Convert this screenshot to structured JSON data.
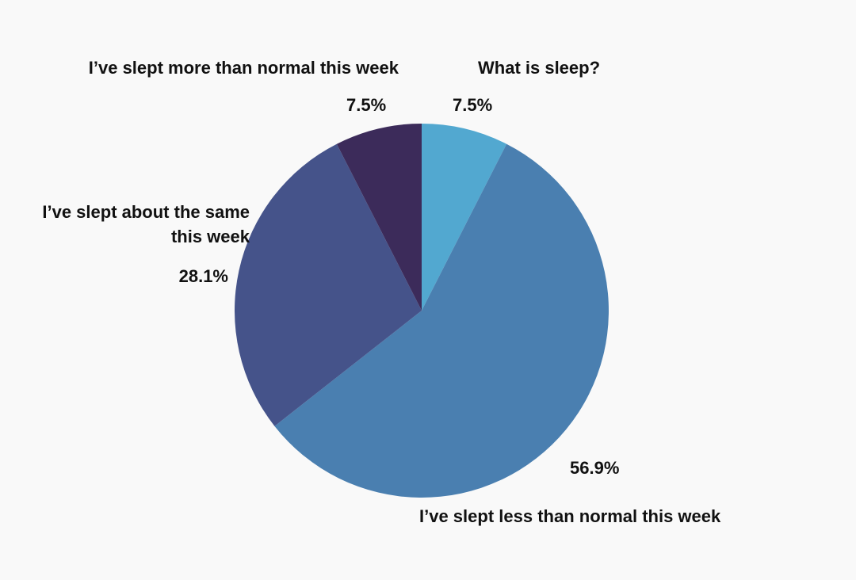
{
  "chart_data": {
    "type": "pie",
    "categories": [
      "What is sleep?",
      "I’ve slept less than normal this week",
      "I’ve slept about the same this week",
      "I’ve slept more than normal this week"
    ],
    "values": [
      7.5,
      56.9,
      28.1,
      7.5
    ],
    "value_labels": [
      "7.5%",
      "56.9%",
      "28.1%",
      "7.5%"
    ],
    "colors": [
      "#52a8d0",
      "#4a7fb0",
      "#45538a",
      "#3c2b5a"
    ]
  }
}
